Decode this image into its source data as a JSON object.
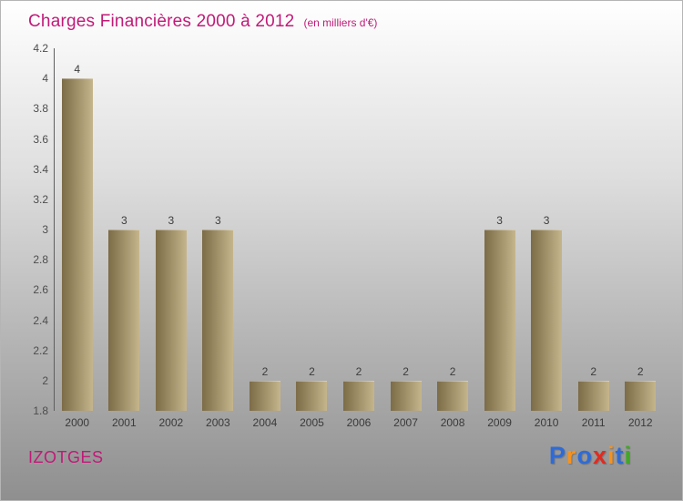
{
  "header": {
    "title": "Charges Financières 2000 à 2012",
    "subtitle": "(en milliers d'€)"
  },
  "footer": {
    "company": "IZOTGES",
    "logo_text": "Proxiti",
    "logo_letters": [
      {
        "ch": "P",
        "color": "#2f6bd7"
      },
      {
        "ch": "r",
        "color": "#f6921e"
      },
      {
        "ch": "o",
        "color": "#2f6bd7"
      },
      {
        "ch": "x",
        "color": "#e02b20"
      },
      {
        "ch": "i",
        "color": "#f6921e"
      },
      {
        "ch": "t",
        "color": "#2f6bd7"
      },
      {
        "ch": "i",
        "color": "#44a629"
      }
    ]
  },
  "colors": {
    "accent": "#c01a78",
    "bar_gradient_start": "#7c6c47",
    "bar_gradient_end": "#c5b58c",
    "axis_line": "#5f5f5f"
  },
  "chart_data": {
    "type": "bar",
    "title": "Charges Financières 2000 à 2012",
    "subtitle": "(en milliers d'€)",
    "categories": [
      "2000",
      "2001",
      "2002",
      "2003",
      "2004",
      "2005",
      "2006",
      "2007",
      "2008",
      "2009",
      "2010",
      "2011",
      "2012"
    ],
    "values": [
      4,
      3,
      3,
      3,
      2,
      2,
      2,
      2,
      2,
      3,
      3,
      2,
      2
    ],
    "xlabel": "",
    "ylabel": "",
    "ylim": [
      1.8,
      4.2
    ],
    "ytick_step": 0.2,
    "ytick_labels": [
      "1.8",
      "2",
      "2.2",
      "2.4",
      "2.6",
      "2.8",
      "3",
      "3.2",
      "3.4",
      "3.6",
      "3.8",
      "4",
      "4.2"
    ],
    "grid": false,
    "legend": false,
    "value_labels_shown": true
  }
}
